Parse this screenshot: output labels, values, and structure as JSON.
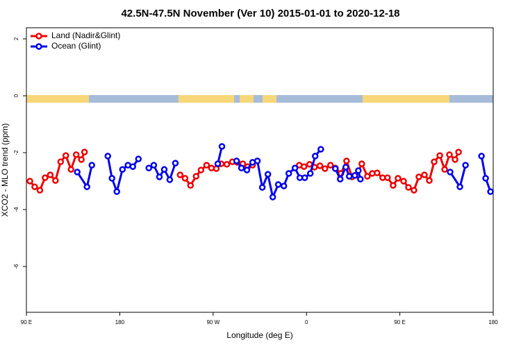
{
  "chart_data": {
    "type": "line",
    "title": "42.5N-47.5N November (Ver 10)   2015-01-01 to 2020-12-18",
    "x_label": "Longitude (deg E)",
    "y_label": "XCO2 - MLO trend (ppm)",
    "xlim": [
      90,
      540
    ],
    "ylim": [
      -7.61,
      2.39
    ],
    "xticks": [
      {
        "value": 90,
        "label": "90 E"
      },
      180,
      {
        "value": 270,
        "label": "90 W"
      },
      {
        "value": 360,
        "label": "0"
      },
      {
        "value": 450,
        "label": "90 E"
      },
      {
        "value": 540,
        "label": "180"
      }
    ],
    "yticks": [
      2,
      0,
      -2,
      -4,
      -6
    ],
    "legend_position": "top-left",
    "series": [
      {
        "name": "Land (Nadir&Glint)",
        "color": "#ee0000",
        "x": [
          93.4,
          98,
          103,
          108,
          113,
          118,
          123,
          128,
          133,
          138,
          143,
          146,
          150,
          238.2,
          242.9,
          248.2,
          253.6,
          258.3,
          263.7,
          268.4,
          273.1,
          277.8,
          283.2,
          288.5,
          293.3,
          298.6,
          303.3,
          308,
          330,
          353,
          357.6,
          363,
          367.7,
          373,
          377.8,
          383.1,
          387.8,
          393.2,
          398.6,
          403.9,
          408.6,
          413.3,
          418.7,
          423.4,
          428.1,
          433.4,
          438.1,
          443.5,
          448.2,
          453.6,
          458.3,
          463.6,
          468.3,
          473.7,
          478.4,
          483.1,
          488.5,
          493.2,
          497.8,
          503.2,
          506.6
        ],
        "values": [
          -3.0,
          -3.2,
          -3.32,
          -2.88,
          -2.78,
          -2.98,
          -2.32,
          -2.1,
          -2.59,
          -2.07,
          -2.24,
          -1.98,
          null,
          -2.78,
          -2.9,
          -3.15,
          -2.83,
          -2.61,
          -2.44,
          -2.54,
          -2.56,
          -2.39,
          -2.41,
          -2.32,
          -2.34,
          -2.39,
          -2.49,
          -2.44,
          null,
          -2.44,
          -2.49,
          -2.41,
          -2.51,
          -2.46,
          -2.56,
          -2.44,
          -2.54,
          -2.73,
          -2.29,
          -2.85,
          -2.8,
          -2.39,
          -2.83,
          -2.73,
          -2.71,
          -2.88,
          -2.88,
          -3.15,
          -2.9,
          -3.0,
          -3.22,
          -3.32,
          -2.85,
          -2.78,
          -2.98,
          -2.32,
          -2.1,
          -2.59,
          -2.07,
          -2.24,
          -1.98
        ]
      },
      {
        "name": "Ocean (Glint)",
        "color": "#0000ee",
        "x": [
          139,
          148.4,
          153.1,
          155,
          168.5,
          172.5,
          177.2,
          182.6,
          187.9,
          192.6,
          198,
          203,
          208,
          212.8,
          218.2,
          222.9,
          228.2,
          233.6,
          235,
          274.5,
          278.5,
          282,
          292.6,
          297.3,
          302.6,
          308,
          312.7,
          317.4,
          322.8,
          327.5,
          332.8,
          338.2,
          342.9,
          348.9,
          353.6,
          358.3,
          363.7,
          368.4,
          373.8,
          378,
          387.8,
          392.5,
          397.9,
          401.2,
          406.6,
          410,
          412,
          420,
          498.5,
          507.9,
          513.3,
          520,
          528.7,
          532.7,
          537.4
        ],
        "values": [
          -2.68,
          -3.2,
          -2.44,
          null,
          -2.12,
          -2.9,
          -3.37,
          -2.59,
          -2.44,
          -2.49,
          -2.22,
          null,
          -2.54,
          -2.44,
          -2.85,
          -2.59,
          -2.95,
          -2.37,
          null,
          -2.39,
          -1.78,
          null,
          -2.29,
          -2.54,
          -2.61,
          -2.34,
          -2.29,
          -3.22,
          -2.76,
          -3.56,
          -3.12,
          -3.17,
          -2.73,
          -2.54,
          -2.88,
          -2.88,
          -2.73,
          -2.12,
          -1.88,
          null,
          -2.56,
          -2.93,
          -2.51,
          -2.83,
          -2.8,
          -2.63,
          -2.93,
          null,
          -2.68,
          -3.2,
          -2.44,
          null,
          -2.12,
          -2.9,
          -3.37
        ]
      }
    ]
  }
}
